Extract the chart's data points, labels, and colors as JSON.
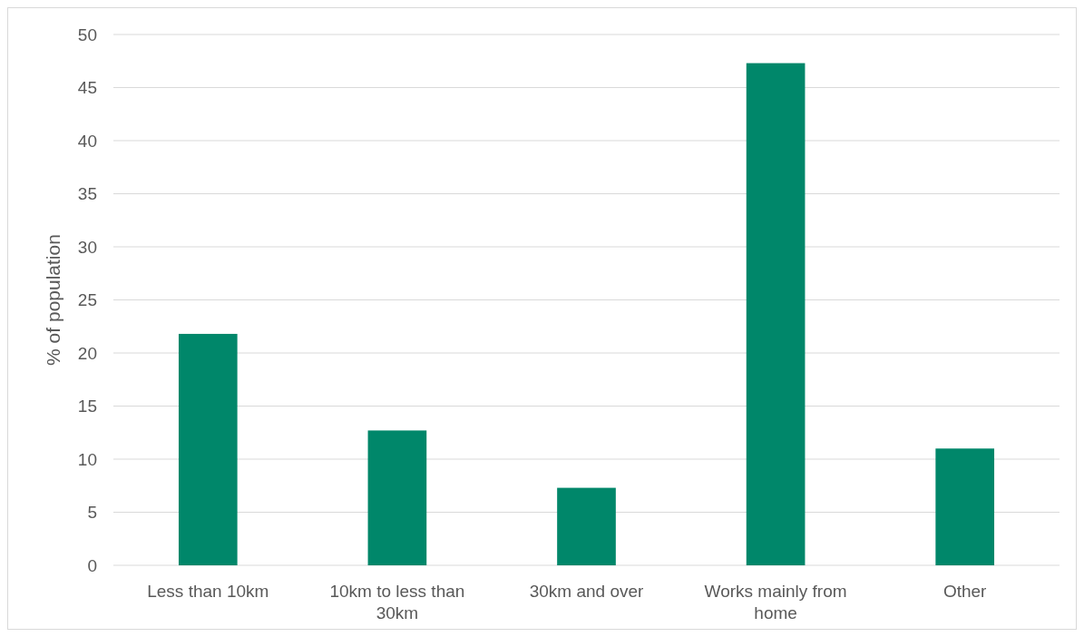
{
  "chart_data": {
    "type": "bar",
    "ylabel": "% of population",
    "categories": [
      "Less than 10km",
      "10km to less than 30km",
      "30km and over",
      "Works mainly from home",
      "Other"
    ],
    "values": [
      21.8,
      12.7,
      7.3,
      47.3,
      11.0
    ],
    "color": "#00876a",
    "ylim": [
      0,
      50
    ],
    "yticks": [
      0,
      5,
      10,
      15,
      20,
      25,
      30,
      35,
      40,
      45,
      50
    ],
    "grid": "y"
  }
}
